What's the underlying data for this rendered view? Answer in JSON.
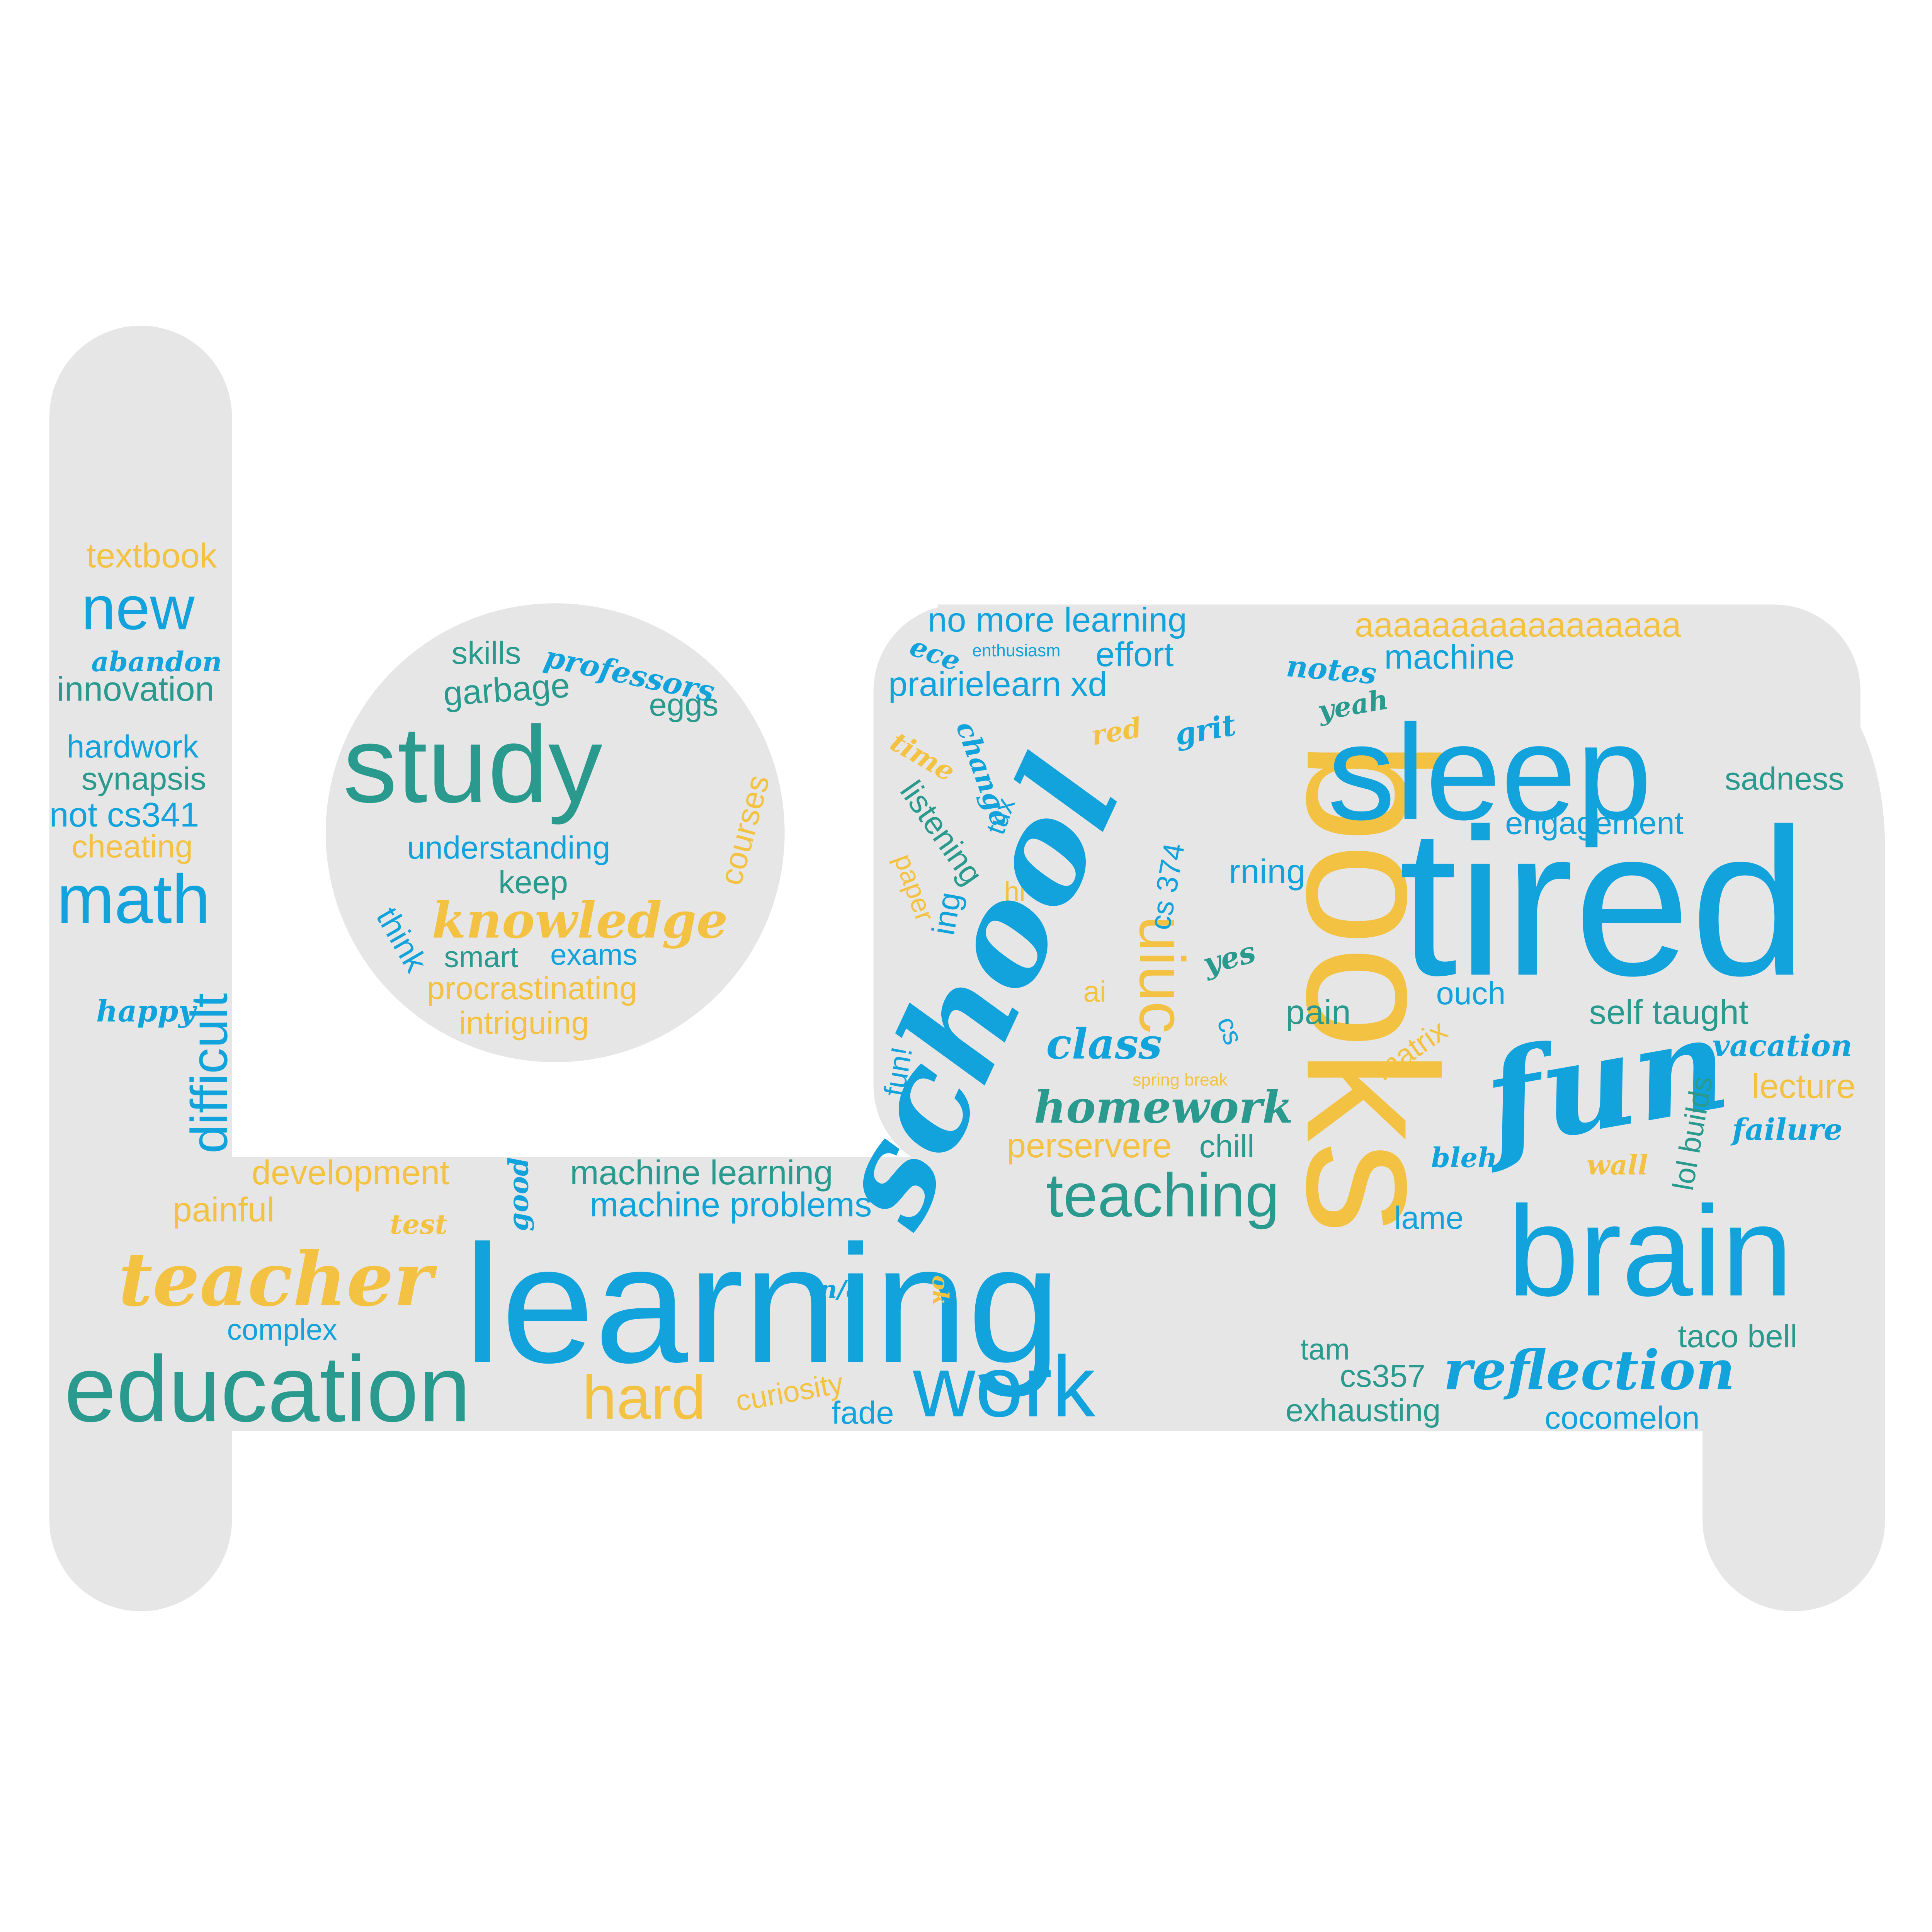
{
  "palette": {
    "blue": "#12a3dc",
    "teal": "#2a9a8f",
    "yellow": "#f4c242",
    "shape": "#e6e6e6"
  },
  "words": [
    {
      "id": "textbook",
      "text": "textbook",
      "color": "yellow"
    },
    {
      "id": "new",
      "text": "new",
      "color": "blue"
    },
    {
      "id": "abandon",
      "text": "abandon",
      "color": "blue"
    },
    {
      "id": "innovation",
      "text": "innovation",
      "color": "teal"
    },
    {
      "id": "hardwork",
      "text": "hardwork",
      "color": "blue"
    },
    {
      "id": "synapsis",
      "text": "synapsis",
      "color": "teal"
    },
    {
      "id": "not-cs341",
      "text": "not cs341",
      "color": "blue"
    },
    {
      "id": "cheating",
      "text": "cheating",
      "color": "yellow"
    },
    {
      "id": "math",
      "text": "math",
      "color": "blue"
    },
    {
      "id": "happy",
      "text": "happy",
      "color": "blue"
    },
    {
      "id": "difficult",
      "text": "difficult",
      "color": "blue"
    },
    {
      "id": "skills",
      "text": "skills",
      "color": "teal"
    },
    {
      "id": "professors",
      "text": "professors",
      "color": "blue"
    },
    {
      "id": "garbage",
      "text": "garbage",
      "color": "teal"
    },
    {
      "id": "eggs",
      "text": "eggs",
      "color": "teal"
    },
    {
      "id": "study",
      "text": "study",
      "color": "teal"
    },
    {
      "id": "courses",
      "text": "courses",
      "color": "yellow"
    },
    {
      "id": "understanding",
      "text": "understanding",
      "color": "blue"
    },
    {
      "id": "keep",
      "text": "keep",
      "color": "teal"
    },
    {
      "id": "knowledge",
      "text": "knowledge",
      "color": "yellow"
    },
    {
      "id": "think",
      "text": "think",
      "color": "blue"
    },
    {
      "id": "smart",
      "text": "smart",
      "color": "teal"
    },
    {
      "id": "exams",
      "text": "exams",
      "color": "blue"
    },
    {
      "id": "procrastinating",
      "text": "procrastinating",
      "color": "yellow"
    },
    {
      "id": "intriguing",
      "text": "intriguing",
      "color": "yellow"
    },
    {
      "id": "development",
      "text": "development",
      "color": "yellow"
    },
    {
      "id": "painful",
      "text": "painful",
      "color": "yellow"
    },
    {
      "id": "test",
      "text": "test",
      "color": "yellow"
    },
    {
      "id": "teacher",
      "text": "teacher",
      "color": "yellow"
    },
    {
      "id": "complex",
      "text": "complex",
      "color": "blue"
    },
    {
      "id": "education",
      "text": "education",
      "color": "teal"
    },
    {
      "id": "hard",
      "text": "hard",
      "color": "yellow"
    },
    {
      "id": "curiosity",
      "text": "curiosity",
      "color": "yellow"
    },
    {
      "id": "fade",
      "text": "fade",
      "color": "blue"
    },
    {
      "id": "work",
      "text": "work",
      "color": "blue"
    },
    {
      "id": "learning",
      "text": "learning",
      "color": "blue"
    },
    {
      "id": "good",
      "text": "good",
      "color": "blue"
    },
    {
      "id": "machine-learning",
      "text": "machine learning",
      "color": "teal"
    },
    {
      "id": "machine-problems",
      "text": "machine problems",
      "color": "blue"
    },
    {
      "id": "na",
      "text": "n/a",
      "color": "blue"
    },
    {
      "id": "ok",
      "text": "ok",
      "color": "yellow"
    },
    {
      "id": "no-more-learning",
      "text": "no more learning",
      "color": "blue"
    },
    {
      "id": "ece",
      "text": "ece",
      "color": "blue"
    },
    {
      "id": "enthusiasm",
      "text": "enthusiasm",
      "color": "blue"
    },
    {
      "id": "effort",
      "text": "effort",
      "color": "blue"
    },
    {
      "id": "prairielearn-xd",
      "text": "prairielearn xd",
      "color": "blue"
    },
    {
      "id": "time",
      "text": "time",
      "color": "yellow"
    },
    {
      "id": "change",
      "text": "change",
      "color": "blue"
    },
    {
      "id": "listening",
      "text": "listening",
      "color": "teal"
    },
    {
      "id": "paper",
      "text": "paper",
      "color": "yellow"
    },
    {
      "id": "tux",
      "text": "tux",
      "color": "blue"
    },
    {
      "id": "hi",
      "text": "hi",
      "color": "yellow"
    },
    {
      "id": "ing",
      "text": "ing",
      "color": "blue"
    },
    {
      "id": "school",
      "text": "school",
      "color": "blue"
    },
    {
      "id": "red",
      "text": "red",
      "color": "yellow"
    },
    {
      "id": "grit",
      "text": "grit",
      "color": "blue"
    },
    {
      "id": "books",
      "text": "books",
      "color": "yellow"
    },
    {
      "id": "uiuc",
      "text": "uiuc",
      "color": "yellow"
    },
    {
      "id": "cs-374",
      "text": "cs 374",
      "color": "blue"
    },
    {
      "id": "rning",
      "text": "rning",
      "color": "blue"
    },
    {
      "id": "yes",
      "text": "yes",
      "color": "teal"
    },
    {
      "id": "ai",
      "text": "ai",
      "color": "yellow"
    },
    {
      "id": "cs",
      "text": "cs",
      "color": "blue"
    },
    {
      "id": "class",
      "text": "class",
      "color": "blue"
    },
    {
      "id": "fun-bang",
      "text": "fun!",
      "color": "blue"
    },
    {
      "id": "spring-break",
      "text": "spring break",
      "color": "yellow"
    },
    {
      "id": "homework",
      "text": "homework",
      "color": "teal"
    },
    {
      "id": "perservere",
      "text": "perservere",
      "color": "yellow"
    },
    {
      "id": "chill",
      "text": "chill",
      "color": "teal"
    },
    {
      "id": "teaching",
      "text": "teaching",
      "color": "teal"
    },
    {
      "id": "pain",
      "text": "pain",
      "color": "teal"
    },
    {
      "id": "ouch",
      "text": "ouch",
      "color": "blue"
    },
    {
      "id": "matrix",
      "text": "matrix",
      "color": "yellow"
    },
    {
      "id": "aaaa",
      "text": "aaaaaaaaaaaaaaaaa",
      "color": "yellow"
    },
    {
      "id": "notes",
      "text": "notes",
      "color": "blue"
    },
    {
      "id": "yeah",
      "text": "yeah",
      "color": "teal"
    },
    {
      "id": "machine",
      "text": "machine",
      "color": "blue"
    },
    {
      "id": "sleep",
      "text": "sleep",
      "color": "blue"
    },
    {
      "id": "sadness",
      "text": "sadness",
      "color": "teal"
    },
    {
      "id": "engagement",
      "text": "engagement",
      "color": "blue"
    },
    {
      "id": "tired",
      "text": "tired",
      "color": "blue"
    },
    {
      "id": "self-taught",
      "text": "self taught",
      "color": "teal"
    },
    {
      "id": "vacation",
      "text": "vacation",
      "color": "blue"
    },
    {
      "id": "fun",
      "text": "fun",
      "color": "blue"
    },
    {
      "id": "lol-builds",
      "text": "lol builds",
      "color": "teal"
    },
    {
      "id": "lecture",
      "text": "lecture",
      "color": "yellow"
    },
    {
      "id": "failure",
      "text": "failure",
      "color": "blue"
    },
    {
      "id": "bleh",
      "text": "bleh",
      "color": "blue"
    },
    {
      "id": "wall",
      "text": "wall",
      "color": "yellow"
    },
    {
      "id": "lame",
      "text": "lame",
      "color": "blue"
    },
    {
      "id": "brain",
      "text": "brain",
      "color": "blue"
    },
    {
      "id": "tam",
      "text": "tam",
      "color": "teal"
    },
    {
      "id": "taco-bell",
      "text": "taco bell",
      "color": "teal"
    },
    {
      "id": "cs357",
      "text": "cs357",
      "color": "teal"
    },
    {
      "id": "reflection",
      "text": "reflection",
      "color": "blue"
    },
    {
      "id": "exhausting",
      "text": "exhausting",
      "color": "teal"
    },
    {
      "id": "cocomelon",
      "text": "cocomelon",
      "color": "blue"
    }
  ]
}
